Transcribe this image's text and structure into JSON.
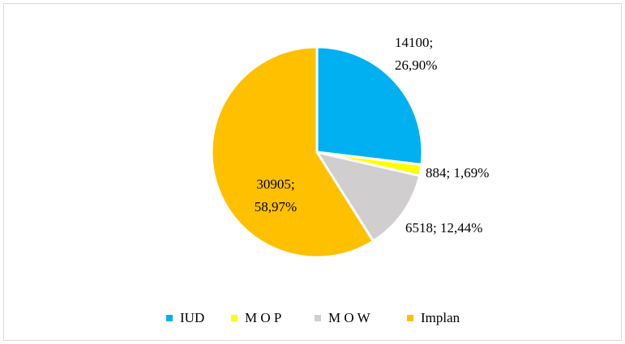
{
  "chart_data": {
    "type": "pie",
    "categories": [
      "IUD",
      "M O P",
      "M O W",
      "Implan"
    ],
    "values": [
      14100,
      884,
      6518,
      30905
    ],
    "value_labels": [
      "14100; 26,90%",
      "884; 1,69%",
      "6518; 12,44%",
      "30905; 58,97%"
    ],
    "colors": [
      "#00b0f0",
      "#ffff00",
      "#d0cece",
      "#ffc000"
    ],
    "legend": "bottom"
  }
}
